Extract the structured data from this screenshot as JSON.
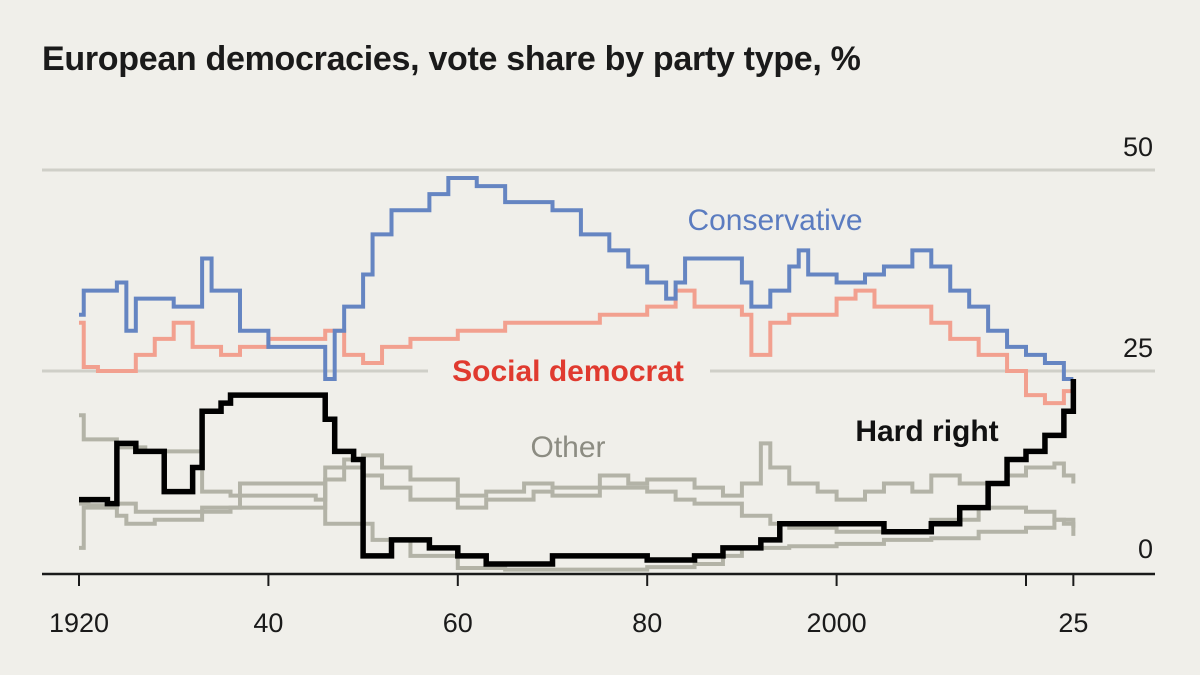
{
  "chart_data": {
    "type": "line",
    "title": "European democracies, vote share by party type, %",
    "xlabel": "",
    "ylabel": "",
    "xlim": [
      1920,
      2025
    ],
    "ylim": [
      0,
      50
    ],
    "y_ticks": [
      0,
      25,
      50
    ],
    "y_tick_labels": [
      "0",
      "25",
      "50"
    ],
    "x_ticks": [
      1920,
      1940,
      1960,
      1980,
      2000,
      2020,
      2025
    ],
    "x_tick_labels": [
      "1920",
      "40",
      "60",
      "80",
      "2000",
      "",
      "25"
    ],
    "grid": "horizontal",
    "line_style": "step",
    "series": [
      {
        "name": "Other",
        "label": "Other",
        "color": "#b3b3a7",
        "label_color": "#8c8c82",
        "x": [
          1920,
          1920.5,
          1924,
          1927,
          1930,
          1933,
          1936,
          1945,
          1946,
          1948,
          1950,
          1952,
          1955,
          1960,
          1963,
          1967,
          1970,
          1975,
          1978,
          1980,
          1985,
          1988,
          1990,
          1992,
          1993,
          1995,
          1998,
          2000,
          2003,
          2005,
          2008,
          2010,
          2013,
          2016,
          2018,
          2020,
          2023,
          2024,
          2025
        ],
        "y": [
          19.5,
          16.5,
          15.5,
          15,
          15,
          10,
          9.5,
          9,
          13,
          14,
          14.5,
          13,
          11.5,
          9.5,
          10,
          11,
          10.5,
          12,
          11,
          11.5,
          10.5,
          9.5,
          11,
          16,
          13,
          11,
          10,
          9,
          10,
          11,
          10,
          12,
          11,
          11,
          12,
          13,
          13.5,
          12,
          11
        ]
      },
      {
        "name": "Other (2)",
        "color": "#b3b3a7",
        "x": [
          1920,
          1921,
          1924,
          1925,
          1928,
          1933,
          1936,
          1945,
          1946,
          1948,
          1950,
          1952,
          1955,
          1960,
          1963,
          1968,
          1970,
          1975,
          1980,
          1983,
          1985,
          1990,
          1993,
          1995,
          2000,
          2005,
          2010,
          2015,
          2018,
          2020,
          2023,
          2025
        ],
        "y": [
          8.5,
          8.3,
          7,
          6,
          6.5,
          7.5,
          8,
          8,
          11.5,
          13,
          12,
          10.5,
          9,
          8,
          9,
          10,
          9.5,
          10.5,
          10,
          9,
          8.5,
          7,
          6,
          5.5,
          5,
          5,
          6.5,
          8,
          8,
          7.5,
          6.5,
          5.5
        ]
      },
      {
        "name": "Other (3)",
        "color": "#b3b3a7",
        "x": [
          1920,
          1920.5,
          1924,
          1926,
          1930,
          1933,
          1937,
          1945,
          1946,
          1949,
          1951,
          1955,
          1960,
          1965,
          1970,
          1975,
          1980,
          1985,
          1988,
          1990,
          1995,
          2000,
          2005,
          2010,
          2015,
          2020,
          2023,
          2024,
          2025
        ],
        "y": [
          3,
          8,
          8.5,
          7.5,
          7.5,
          8,
          11,
          11,
          6,
          6,
          4,
          2,
          0.5,
          0.3,
          0.3,
          0.3,
          0.6,
          1,
          2,
          3,
          3.2,
          3.5,
          4,
          4.2,
          5,
          5.5,
          6.5,
          6,
          4.5
        ]
      },
      {
        "name": "Social democrat",
        "label": "Social democrat",
        "color": "#f2a08f",
        "label_color": "#e03a2f",
        "x": [
          1920,
          1920.5,
          1922,
          1926,
          1928,
          1930,
          1932,
          1935,
          1937,
          1940,
          1945,
          1946,
          1948,
          1950,
          1952,
          1955,
          1960,
          1965,
          1970,
          1975,
          1980,
          1983,
          1985,
          1990,
          1991,
          1993,
          1995,
          2000,
          2002,
          2004,
          2008,
          2010,
          2012,
          2015,
          2018,
          2020,
          2022,
          2024,
          2025
        ],
        "y": [
          31,
          25.5,
          25,
          27,
          29,
          31,
          28,
          27,
          28,
          29,
          29,
          30,
          27,
          26,
          28,
          29,
          30,
          31,
          31,
          32,
          33,
          35,
          33,
          32,
          27,
          31,
          32,
          34,
          35,
          33,
          33,
          31,
          29,
          27,
          25,
          22,
          21,
          22.5,
          23
        ]
      },
      {
        "name": "Conservative",
        "label": "Conservative",
        "color": "#6585c2",
        "label_color": "#5b7cc0",
        "x": [
          1920,
          1920.5,
          1924,
          1925,
          1926,
          1930,
          1933,
          1934,
          1937,
          1940,
          1945,
          1946,
          1947,
          1948,
          1950,
          1951,
          1953,
          1957,
          1959,
          1962,
          1965,
          1970,
          1973,
          1976,
          1978,
          1980,
          1982,
          1983,
          1984,
          1988,
          1990,
          1991,
          1993,
          1995,
          1996,
          1997,
          2000,
          2003,
          2005,
          2008,
          2010,
          2012,
          2014,
          2016,
          2018,
          2020,
          2022,
          2024,
          2025
        ],
        "y": [
          32,
          35,
          36,
          30,
          34,
          33,
          39,
          35,
          30,
          28,
          28,
          24,
          30,
          33,
          37,
          42,
          45,
          47,
          49,
          48,
          46,
          45,
          42,
          40,
          38,
          36,
          34,
          36,
          39,
          39,
          36,
          33,
          35,
          38,
          40,
          37,
          36,
          37,
          38,
          40,
          38,
          35,
          33,
          30,
          28,
          27,
          26,
          24,
          24
        ]
      },
      {
        "name": "Hard right",
        "label": "Hard right",
        "color": "#000000",
        "label_color": "#111111",
        "x": [
          1920,
          1923,
          1924,
          1926,
          1929,
          1931,
          1932,
          1933,
          1935,
          1936,
          1945,
          1946,
          1947,
          1949,
          1950,
          1953,
          1957,
          1960,
          1963,
          1966,
          1970,
          1975,
          1980,
          1985,
          1988,
          1992,
          1994,
          1998,
          2000,
          2005,
          2010,
          2013,
          2016,
          2018,
          2020,
          2022,
          2024,
          2025
        ],
        "y": [
          9,
          8.5,
          16,
          15,
          10,
          10,
          13,
          20,
          21,
          22,
          22,
          19,
          15,
          14,
          2,
          4,
          3,
          2,
          1,
          1,
          2,
          2,
          1.5,
          2,
          3,
          4,
          6,
          6,
          6,
          5,
          6,
          8,
          11,
          14,
          15,
          17,
          20,
          24
        ]
      }
    ]
  }
}
